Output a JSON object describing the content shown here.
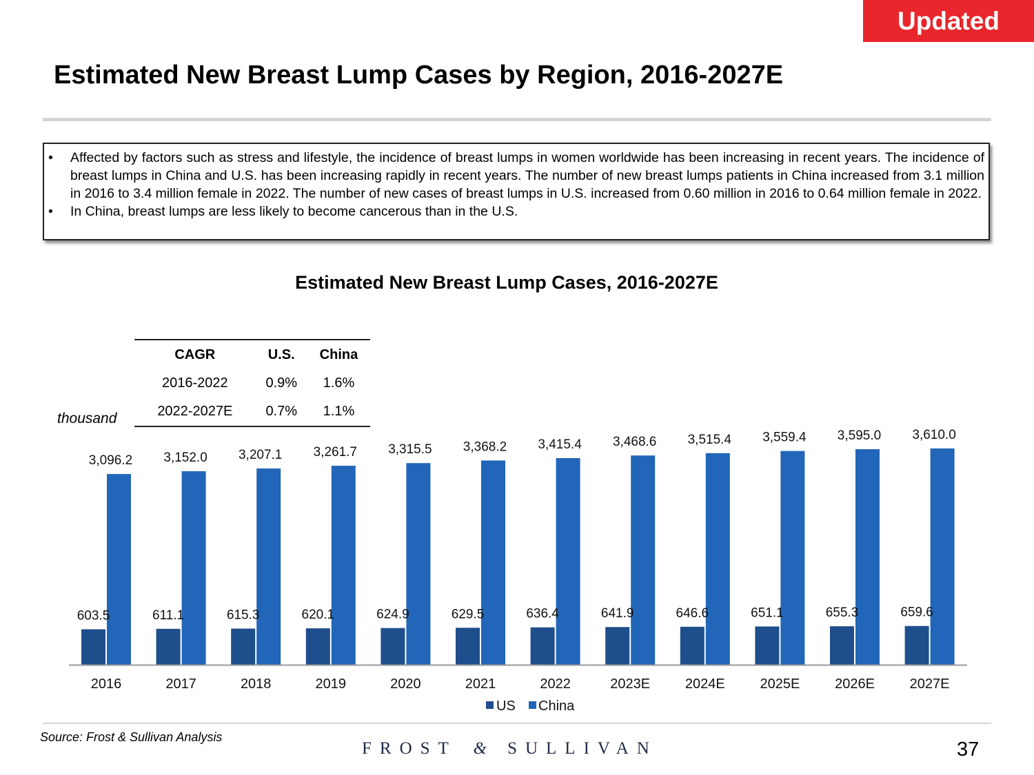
{
  "badge": "Updated",
  "page_title": "Estimated New Breast Lump Cases by Region, 2016-2027E",
  "notes": [
    "Affected by factors such as stress and lifestyle, the incidence of breast lumps in women worldwide has been increasing in recent years. The incidence of breast lumps in China and U.S. has been increasing rapidly in recent years. The number of new breast lumps patients in China increased from 3.1 million in 2016 to 3.4 million female in 2022. The number of new cases of breast lumps in U.S. increased from 0.60 million in 2016 to 0.64 million female in 2022.",
    "In China, breast lumps are less likely to become cancerous than in the U.S."
  ],
  "cagr_table": {
    "headers": [
      "CAGR",
      "U.S.",
      "China"
    ],
    "rows": [
      [
        "2016-2022",
        "0.9%",
        "1.6%"
      ],
      [
        "2022-2027E",
        "0.7%",
        "1.1%"
      ]
    ]
  },
  "chart_data": {
    "type": "bar",
    "title": "Estimated New Breast Lump Cases, 2016-2027E",
    "unit_label": "thousand",
    "categories": [
      "2016",
      "2017",
      "2018",
      "2019",
      "2020",
      "2021",
      "2022",
      "2023E",
      "2024E",
      "2025E",
      "2026E",
      "2027E"
    ],
    "series": [
      {
        "name": "US",
        "color": "#1f4e8c",
        "values": [
          603.5,
          611.1,
          615.3,
          620.1,
          624.9,
          629.5,
          636.4,
          641.9,
          646.6,
          651.1,
          655.3,
          659.6
        ],
        "labels": [
          "603.5",
          "611.1",
          "615.3",
          "620.1",
          "624.9",
          "629.5",
          "636.4",
          "641.9",
          "646.6",
          "651.1",
          "655.3",
          "659.6"
        ]
      },
      {
        "name": "China",
        "color": "#2166b8",
        "values": [
          3096.2,
          3152.0,
          3207.1,
          3261.7,
          3315.5,
          3368.2,
          3415.4,
          3468.6,
          3515.4,
          3559.4,
          3595.0,
          3610.0
        ],
        "labels": [
          "3,096.2",
          "3,152.0",
          "3,207.1",
          "3,261.7",
          "3,315.5",
          "3,368.2",
          "3,415.4",
          "3,468.6",
          "3,515.4",
          "3,559.4",
          "3,595.0",
          "3,610.0"
        ]
      }
    ],
    "legend": "bottom-center",
    "grid": false
  },
  "footer": {
    "source": "Source: Frost & Sullivan Analysis",
    "logo_left": "FROST",
    "logo_amp": "&",
    "logo_right": "SULLIVAN",
    "page_number": "37"
  }
}
